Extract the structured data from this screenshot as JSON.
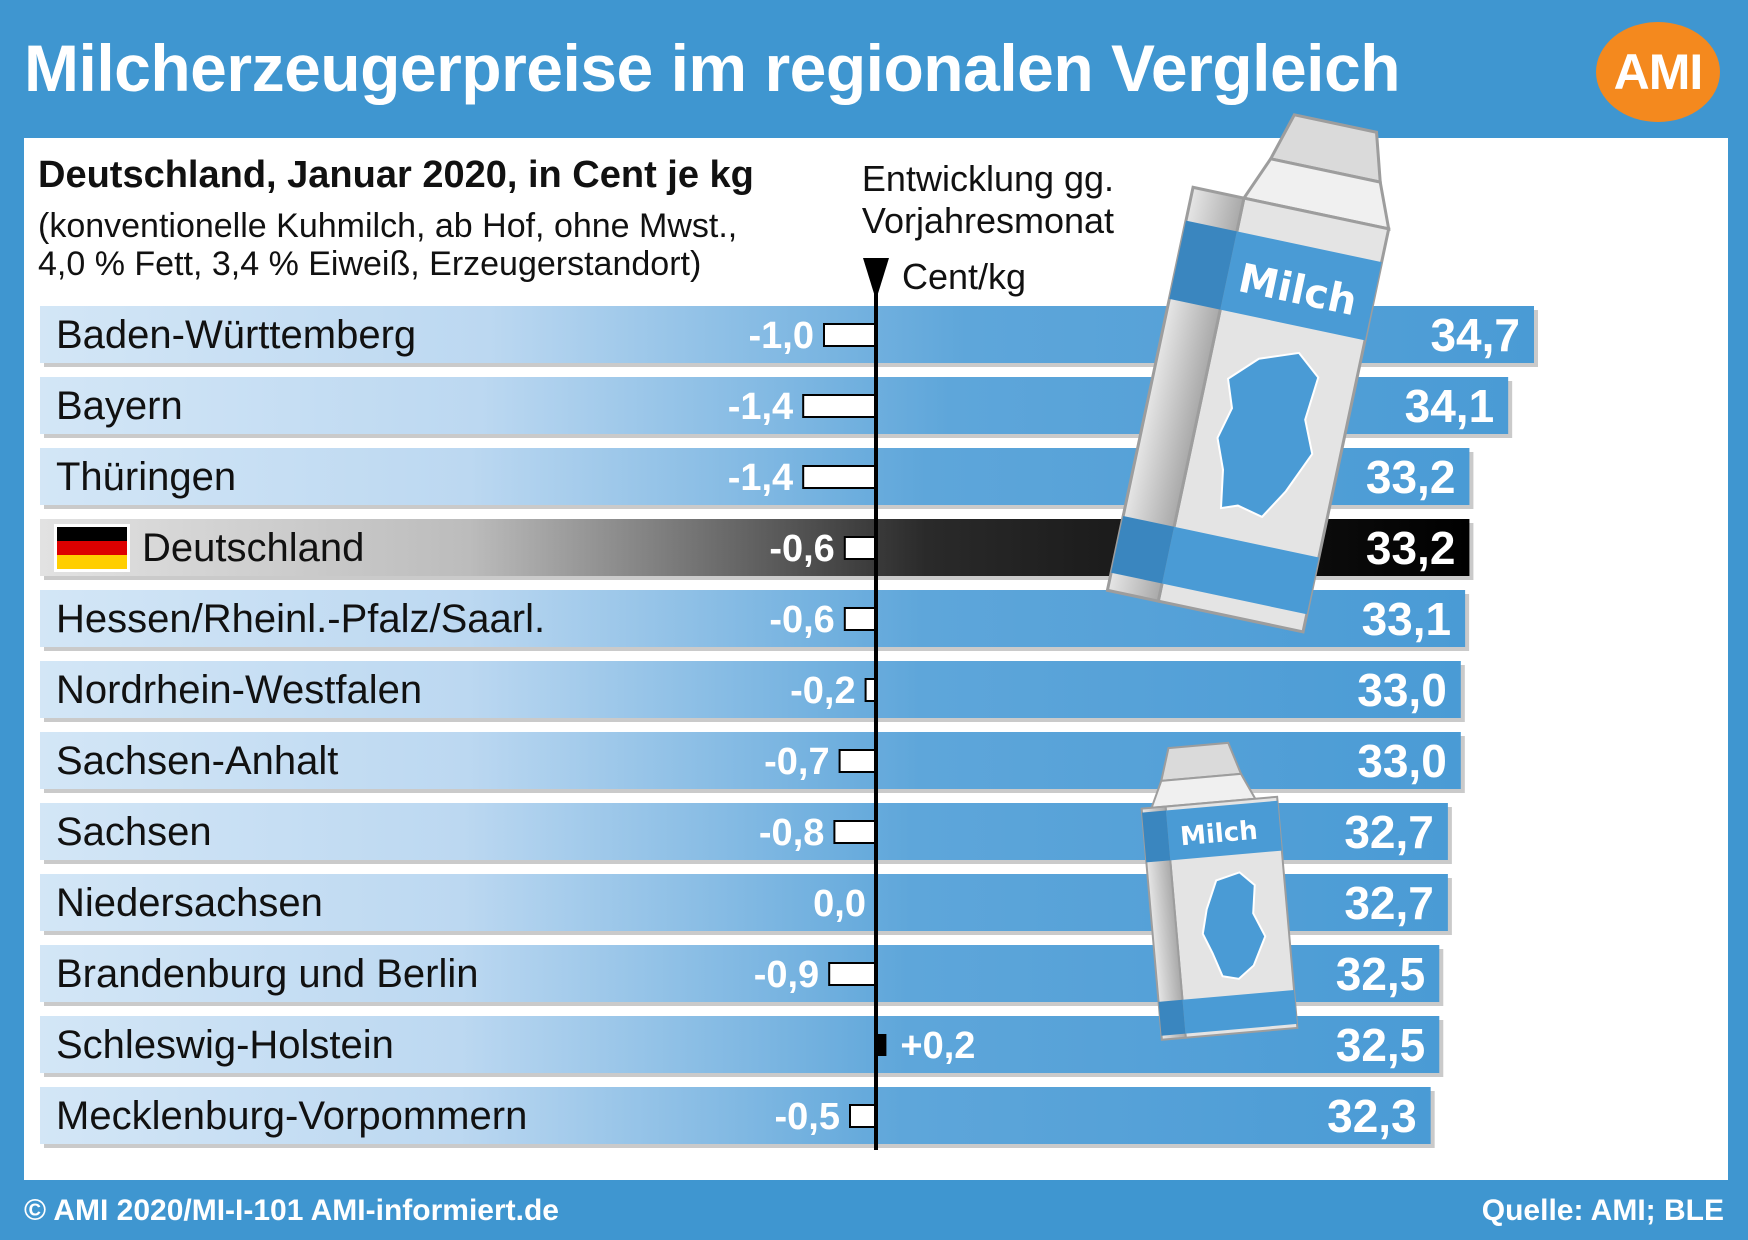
{
  "header": {
    "title": "Milcherzeugerpreise im regionalen Vergleich",
    "logo": "AMI"
  },
  "subtitle": {
    "line1": "Deutschland, Januar 2020, in Cent je kg",
    "line2": "(konventionelle Kuhmilch, ab Hof, ohne Mwst.,",
    "line3": "4,0 % Fett, 3,4 % Eiweiß, Erzeugerstandort)"
  },
  "development": {
    "line1": "Entwicklung gg.",
    "line2": "Vorjahresmonat",
    "unit": "Cent/kg"
  },
  "illustration": {
    "carton_label": "Milch"
  },
  "footer": {
    "left": "© AMI 2020/MI-I-101 AMI-informiert.de",
    "right": "Quelle: AMI; BLE"
  },
  "colors": {
    "background": "#3f96d0",
    "bar": "#4a9bd5",
    "highlight": "#000000",
    "logo": "#f4891e"
  },
  "chart_data": {
    "type": "bar",
    "orientation": "horizontal",
    "categories": [
      "Baden-Württemberg",
      "Bayern",
      "Thüringen",
      "Deutschland",
      "Hessen/Rheinl.-Pfalz/Saarl.",
      "Nordrhein-Westfalen",
      "Sachsen-Anhalt",
      "Sachsen",
      "Niedersachsen",
      "Brandenburg und Berlin",
      "Schleswig-Holstein",
      "Mecklenburg-Vorpommern"
    ],
    "highlight": "Deutschland",
    "series": [
      {
        "values": [
          34.7,
          34.1,
          33.2,
          33.2,
          33.1,
          33.0,
          33.0,
          32.7,
          32.7,
          32.5,
          32.5,
          32.3
        ],
        "labels": [
          "34,7",
          "34,1",
          "33,2",
          "33,2",
          "33,1",
          "33,0",
          "33,0",
          "32,7",
          "32,7",
          "32,5",
          "32,5",
          "32,3"
        ]
      },
      {
        "values": [
          -1.0,
          -1.4,
          -1.4,
          -0.6,
          -0.6,
          -0.2,
          -0.7,
          -0.8,
          0.0,
          -0.9,
          0.2,
          -0.5
        ],
        "labels": [
          "-1,0",
          "-1,4",
          "-1,4",
          "-0,6",
          "-0,6",
          "-0,2",
          "-0,7",
          "-0,8",
          "0,0",
          "-0,9",
          "+0,2",
          "-0,5"
        ]
      }
    ]
  }
}
